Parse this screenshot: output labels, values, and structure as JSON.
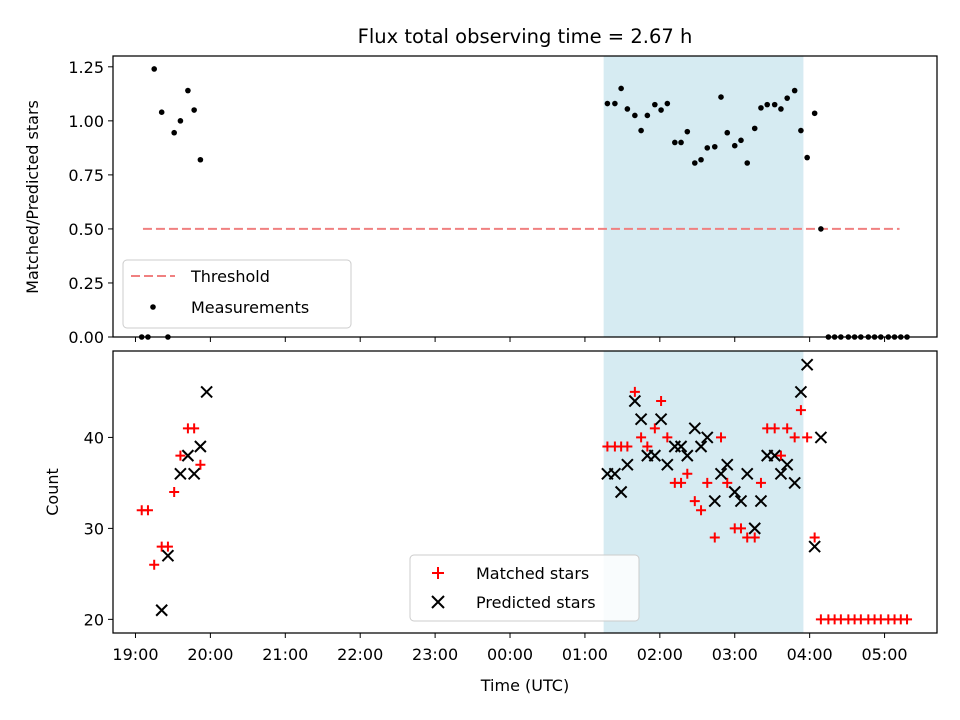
{
  "chart_data": [
    {
      "type": "scatter",
      "title": "Flux total observing time = 2.67 h",
      "ylabel": "Matched/Predicted stars",
      "xlabel": "",
      "xlim": [
        "18:42",
        "05:42"
      ],
      "ylim": [
        0,
        1.3
      ],
      "yticks": [
        "0.00",
        "0.25",
        "0.50",
        "0.75",
        "1.00",
        "1.25"
      ],
      "xticks": [
        "19:00",
        "20:00",
        "21:00",
        "22:00",
        "23:00",
        "00:00",
        "01:00",
        "02:00",
        "03:00",
        "04:00",
        "05:00"
      ],
      "shaded_span": [
        "01:15",
        "03:55"
      ],
      "shaded_color": "#add8e6",
      "threshold": {
        "name": "Threshold",
        "value": 0.5,
        "x": [
          "19:06",
          "05:12"
        ],
        "color": "#f08080",
        "style": "dashed"
      },
      "series": [
        {
          "name": "Measurements",
          "marker": "dot",
          "color": "#000000",
          "points": [
            [
              "19:05",
              0.0
            ],
            [
              "19:10",
              0.0
            ],
            [
              "19:15",
              1.24
            ],
            [
              "19:21",
              1.04
            ],
            [
              "19:26",
              0.0
            ],
            [
              "19:31",
              0.945
            ],
            [
              "19:36",
              1.0
            ],
            [
              "19:42",
              1.14
            ],
            [
              "19:47",
              1.05
            ],
            [
              "19:52",
              0.82
            ],
            [
              "01:18",
              1.08
            ],
            [
              "01:24",
              1.08
            ],
            [
              "01:29",
              1.15
            ],
            [
              "01:34",
              1.055
            ],
            [
              "01:40",
              1.025
            ],
            [
              "01:45",
              0.955
            ],
            [
              "01:50",
              1.025
            ],
            [
              "01:56",
              1.075
            ],
            [
              "02:01",
              1.05
            ],
            [
              "02:06",
              1.08
            ],
            [
              "02:12",
              0.9
            ],
            [
              "02:17",
              0.9
            ],
            [
              "02:22",
              0.95
            ],
            [
              "02:28",
              0.805
            ],
            [
              "02:33",
              0.82
            ],
            [
              "02:38",
              0.875
            ],
            [
              "02:44",
              0.88
            ],
            [
              "02:49",
              1.11
            ],
            [
              "02:54",
              0.945
            ],
            [
              "03:00",
              0.885
            ],
            [
              "03:05",
              0.91
            ],
            [
              "03:10",
              0.805
            ],
            [
              "03:16",
              0.965
            ],
            [
              "03:21",
              1.06
            ],
            [
              "03:26",
              1.075
            ],
            [
              "03:32",
              1.075
            ],
            [
              "03:37",
              1.055
            ],
            [
              "03:42",
              1.105
            ],
            [
              "03:48",
              1.14
            ],
            [
              "03:53",
              0.955
            ],
            [
              "03:58",
              0.83
            ],
            [
              "04:04",
              1.035
            ],
            [
              "04:09",
              0.5
            ],
            [
              "04:15",
              0.0
            ],
            [
              "04:20",
              0.0
            ],
            [
              "04:25",
              0.0
            ],
            [
              "04:31",
              0.0
            ],
            [
              "04:36",
              0.0
            ],
            [
              "04:41",
              0.0
            ],
            [
              "04:47",
              0.0
            ],
            [
              "04:52",
              0.0
            ],
            [
              "04:57",
              0.0
            ],
            [
              "05:03",
              0.0
            ],
            [
              "05:08",
              0.0
            ],
            [
              "05:13",
              0.0
            ],
            [
              "05:18",
              0.0
            ]
          ]
        }
      ],
      "legend": {
        "placement": "lower-left",
        "entries": [
          "Threshold",
          "Measurements"
        ]
      }
    },
    {
      "type": "scatter",
      "title": "",
      "xlabel": "Time (UTC)",
      "ylabel": "Count",
      "xlim": [
        "18:42",
        "05:42"
      ],
      "ylim": [
        18.5,
        49.5
      ],
      "yticks": [
        "20",
        "30",
        "40"
      ],
      "xticks": [
        "19:00",
        "20:00",
        "21:00",
        "22:00",
        "23:00",
        "00:00",
        "01:00",
        "02:00",
        "03:00",
        "04:00",
        "05:00"
      ],
      "shaded_span": [
        "01:15",
        "03:55"
      ],
      "shaded_color": "#add8e6",
      "series": [
        {
          "name": "Matched stars",
          "marker": "plus",
          "color": "#ff0000",
          "points": [
            [
              "19:05",
              32
            ],
            [
              "19:10",
              32
            ],
            [
              "19:15",
              26
            ],
            [
              "19:21",
              28
            ],
            [
              "19:26",
              28
            ],
            [
              "19:31",
              34
            ],
            [
              "19:36",
              38
            ],
            [
              "19:42",
              41
            ],
            [
              "19:47",
              41
            ],
            [
              "19:52",
              37
            ],
            [
              "01:18",
              39
            ],
            [
              "01:24",
              39
            ],
            [
              "01:29",
              39
            ],
            [
              "01:34",
              39
            ],
            [
              "01:40",
              45
            ],
            [
              "01:45",
              40
            ],
            [
              "01:50",
              39
            ],
            [
              "01:56",
              41
            ],
            [
              "02:01",
              44
            ],
            [
              "02:06",
              40
            ],
            [
              "02:12",
              35
            ],
            [
              "02:17",
              35
            ],
            [
              "02:22",
              36
            ],
            [
              "02:28",
              33
            ],
            [
              "02:33",
              32
            ],
            [
              "02:38",
              35
            ],
            [
              "02:44",
              29
            ],
            [
              "02:49",
              40
            ],
            [
              "02:54",
              35
            ],
            [
              "03:00",
              30
            ],
            [
              "03:05",
              30
            ],
            [
              "03:10",
              29
            ],
            [
              "03:16",
              29
            ],
            [
              "03:21",
              35
            ],
            [
              "03:26",
              41
            ],
            [
              "03:32",
              41
            ],
            [
              "03:37",
              38
            ],
            [
              "03:42",
              41
            ],
            [
              "03:48",
              40
            ],
            [
              "03:53",
              43
            ],
            [
              "03:58",
              40
            ],
            [
              "04:04",
              29
            ],
            [
              "04:09",
              20
            ],
            [
              "04:15",
              20
            ],
            [
              "04:20",
              20
            ],
            [
              "04:25",
              20
            ],
            [
              "04:31",
              20
            ],
            [
              "04:36",
              20
            ],
            [
              "04:41",
              20
            ],
            [
              "04:47",
              20
            ],
            [
              "04:52",
              20
            ],
            [
              "04:57",
              20
            ],
            [
              "05:03",
              20
            ],
            [
              "05:08",
              20
            ],
            [
              "05:13",
              20
            ],
            [
              "05:18",
              20
            ]
          ]
        },
        {
          "name": "Predicted stars",
          "marker": "x",
          "color": "#000000",
          "points": [
            [
              "19:21",
              21
            ],
            [
              "19:26",
              27
            ],
            [
              "19:36",
              36
            ],
            [
              "19:42",
              38
            ],
            [
              "19:47",
              36
            ],
            [
              "19:52",
              39
            ],
            [
              "19:57",
              45
            ],
            [
              "01:18",
              36
            ],
            [
              "01:24",
              36
            ],
            [
              "01:29",
              34
            ],
            [
              "01:34",
              37
            ],
            [
              "01:40",
              44
            ],
            [
              "01:45",
              42
            ],
            [
              "01:50",
              38
            ],
            [
              "01:56",
              38
            ],
            [
              "02:01",
              42
            ],
            [
              "02:06",
              37
            ],
            [
              "02:12",
              39
            ],
            [
              "02:17",
              39
            ],
            [
              "02:22",
              38
            ],
            [
              "02:28",
              41
            ],
            [
              "02:33",
              39
            ],
            [
              "02:38",
              40
            ],
            [
              "02:44",
              33
            ],
            [
              "02:49",
              36
            ],
            [
              "02:54",
              37
            ],
            [
              "03:00",
              34
            ],
            [
              "03:05",
              33
            ],
            [
              "03:10",
              36
            ],
            [
              "03:16",
              30
            ],
            [
              "03:21",
              33
            ],
            [
              "03:26",
              38
            ],
            [
              "03:32",
              38
            ],
            [
              "03:37",
              36
            ],
            [
              "03:42",
              37
            ],
            [
              "03:48",
              35
            ],
            [
              "03:53",
              45
            ],
            [
              "03:58",
              48
            ],
            [
              "04:04",
              28
            ],
            [
              "04:09",
              40
            ]
          ]
        }
      ],
      "legend": {
        "placement": "lower-center",
        "entries": [
          "Matched stars",
          "Predicted stars"
        ]
      }
    }
  ]
}
